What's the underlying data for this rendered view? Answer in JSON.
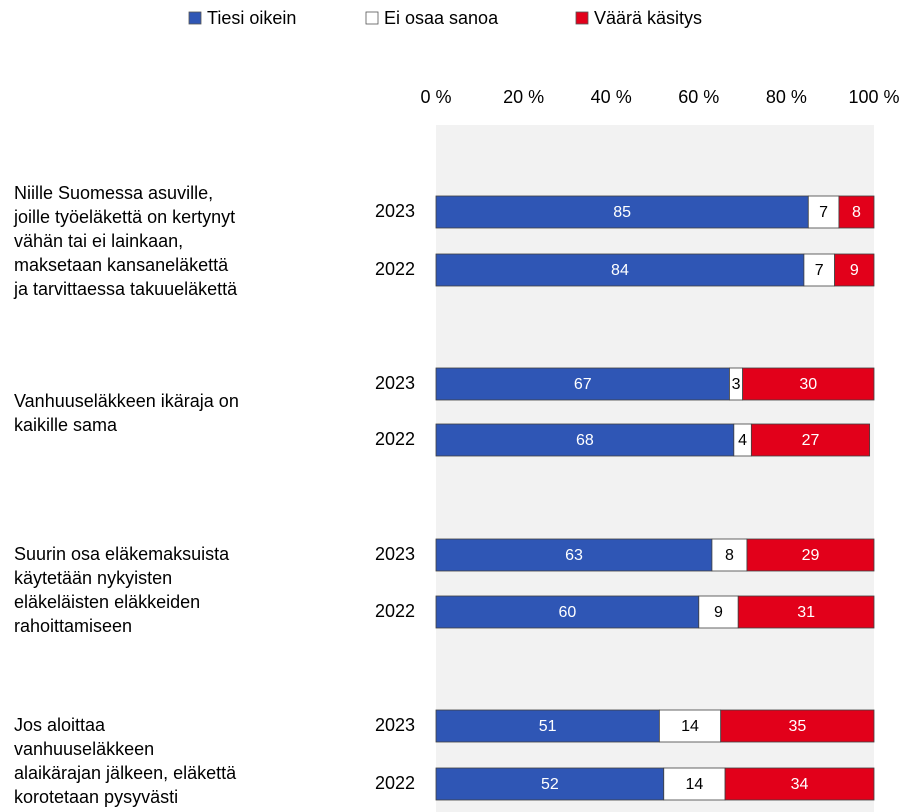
{
  "chart_data": {
    "type": "bar",
    "orientation": "horizontal",
    "stacked": true,
    "groups": [
      [
        "Niille Suomessa asuville,",
        "joille työeläkettä on kertynyt",
        "vähän tai ei lainkaan,",
        "maksetaan kansaneläkettä",
        "ja tarvittaessa takuueläkettä"
      ],
      [
        "Vanhuuseläkkeen ikäraja on",
        "kaikille sama"
      ],
      [
        "Suurin osa eläkemaksuista",
        "käytetään nykyisten",
        "eläkeläisten eläkkeiden",
        "rahoittamiseen"
      ],
      [
        "Jos aloittaa",
        "vanhuuseläkkeen",
        "alaikärajan jälkeen, eläkettä",
        "korotetaan pysyvästi"
      ]
    ],
    "categories": [
      "2023",
      "2022",
      "2023",
      "2022",
      "2023",
      "2022",
      "2023",
      "2022"
    ],
    "series": [
      {
        "name": "Tiesi oikein",
        "color": "#2f56b5",
        "label_color": "#ffffff",
        "values": [
          85,
          84,
          67,
          68,
          63,
          60,
          51,
          52
        ]
      },
      {
        "name": "Ei osaa sanoa",
        "color": "#ffffff",
        "label_color": "#000000",
        "values": [
          7,
          7,
          3,
          4,
          8,
          9,
          14,
          14
        ]
      },
      {
        "name": "Väärä käsitys",
        "color": "#e2001a",
        "label_color": "#ffffff",
        "values": [
          8,
          9,
          30,
          27,
          29,
          31,
          35,
          34
        ]
      }
    ],
    "xlim": [
      0,
      100
    ],
    "xticks": [
      {
        "value": 0,
        "label": "0 %"
      },
      {
        "value": 20,
        "label": "20 %"
      },
      {
        "value": 40,
        "label": "40 %"
      },
      {
        "value": 60,
        "label": "60 %"
      },
      {
        "value": 80,
        "label": "80 %"
      },
      {
        "value": 100,
        "label": "100 %"
      }
    ],
    "legend": "top"
  }
}
